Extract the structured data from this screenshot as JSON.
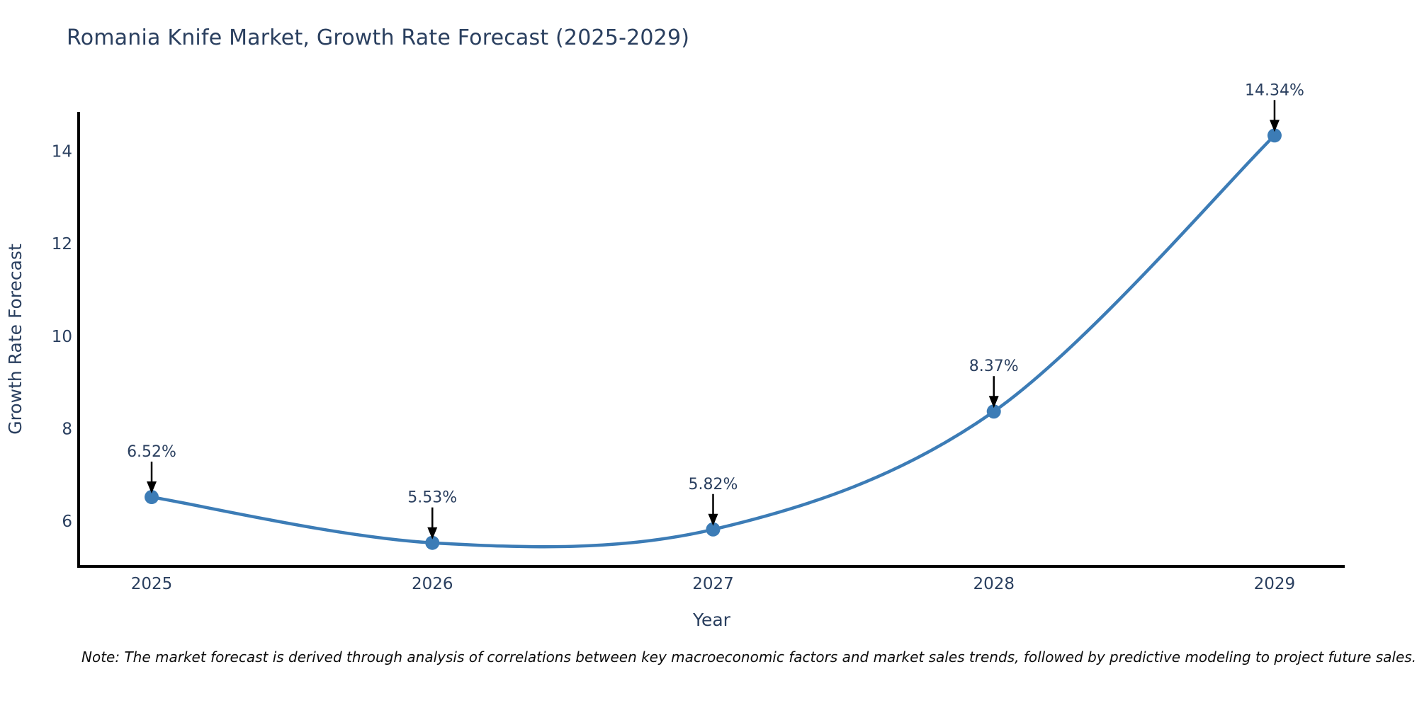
{
  "title": "Romania Knife Market, Growth Rate Forecast (2025-2029)",
  "note": "Note: The market forecast is derived through analysis of correlations between key macroeconomic factors and market sales trends, followed by predictive modeling to project future sales.",
  "chart_data": {
    "type": "line",
    "title": "Romania Knife Market, Growth Rate Forecast (2025-2029)",
    "xlabel": "Year",
    "ylabel": "Growth Rate Forecast",
    "x": [
      2025,
      2026,
      2027,
      2028,
      2029
    ],
    "categories": [
      "2025",
      "2026",
      "2027",
      "2028",
      "2029"
    ],
    "values": [
      6.52,
      5.53,
      5.82,
      8.37,
      14.34
    ],
    "point_labels": [
      "6.52%",
      "5.53%",
      "5.82%",
      "8.37%",
      "14.34%"
    ],
    "yticks": [
      6,
      8,
      10,
      12,
      14
    ],
    "ylim": [
      5.02,
      14.85
    ],
    "xlim": [
      2024.74,
      2029.25
    ],
    "line_shape": "spline",
    "grid": false,
    "legend": null,
    "colors": {
      "line": "#3c7cb6",
      "marker": "#3c7cb6",
      "axis": "#000000",
      "tick_text": "#2a3f5f",
      "annotation_text": "#2a3f5f",
      "arrow": "#000000",
      "title_text": "#2a3f5f",
      "note_text": "#0d0d0d",
      "background": "#ffffff"
    }
  }
}
